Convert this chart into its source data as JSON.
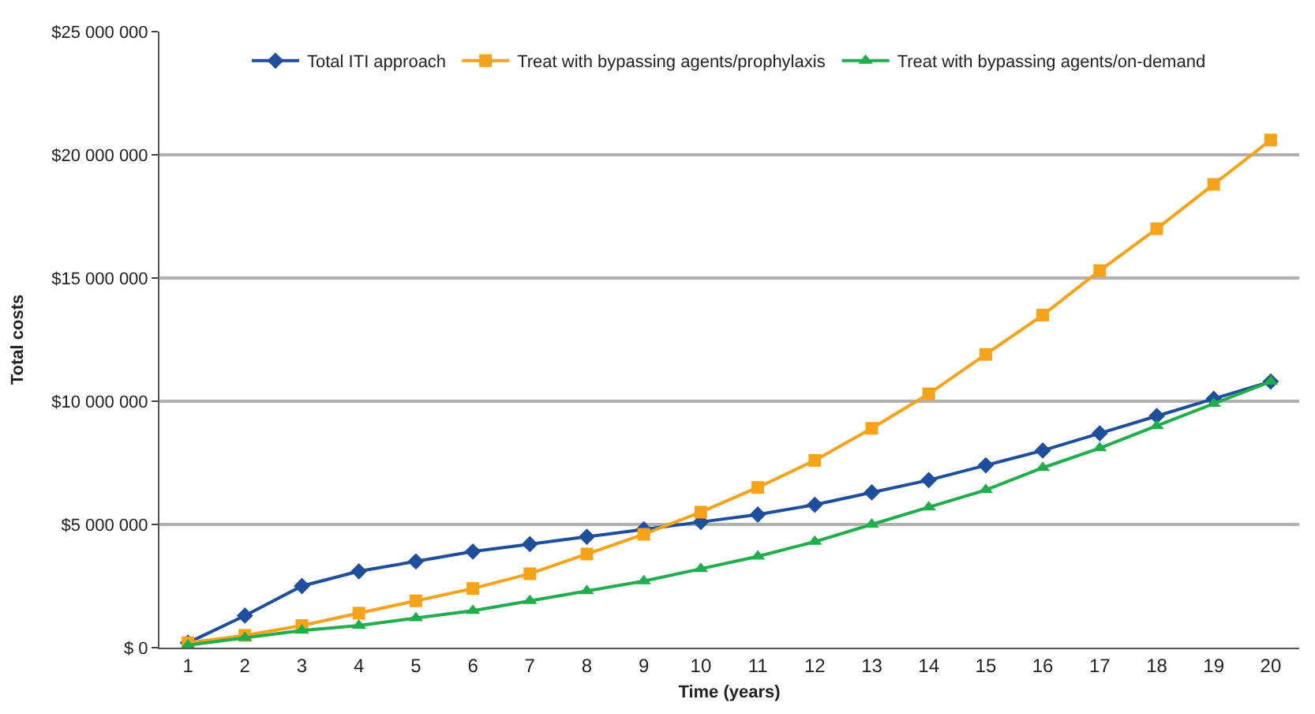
{
  "chart_data": {
    "type": "line",
    "xlabel": "Time (years)",
    "ylabel": "Total costs",
    "x": [
      1,
      2,
      3,
      4,
      5,
      6,
      7,
      8,
      9,
      10,
      11,
      12,
      13,
      14,
      15,
      16,
      17,
      18,
      19,
      20
    ],
    "xlim": [
      0.5,
      20.5
    ],
    "xticks": [
      1,
      2,
      3,
      4,
      5,
      6,
      7,
      8,
      9,
      10,
      11,
      12,
      13,
      14,
      15,
      16,
      17,
      18,
      19,
      20
    ],
    "series": [
      {
        "name": "Total ITI approach",
        "color": "#1f4e9c",
        "marker": "diamond",
        "values": [
          200000,
          1300000,
          2500000,
          3100000,
          3500000,
          3900000,
          4200000,
          4500000,
          4800000,
          5100000,
          5400000,
          5800000,
          6300000,
          6800000,
          7400000,
          8000000,
          8700000,
          9400000,
          10100000,
          10800000
        ]
      },
      {
        "name": "Treat with bypassing agents/prophylaxis",
        "color": "#f7a21b",
        "marker": "square",
        "values": [
          200000,
          500000,
          900000,
          1400000,
          1900000,
          2400000,
          3000000,
          3800000,
          4600000,
          5500000,
          6500000,
          7600000,
          8900000,
          10300000,
          11900000,
          13500000,
          15300000,
          17000000,
          18800000,
          20600000
        ]
      },
      {
        "name": "Treat with bypassing agents/on-demand",
        "color": "#1fae4b",
        "marker": "triangle",
        "values": [
          100000,
          400000,
          700000,
          900000,
          1200000,
          1500000,
          1900000,
          2300000,
          2700000,
          3200000,
          3700000,
          4300000,
          5000000,
          5700000,
          6400000,
          7300000,
          8100000,
          9000000,
          9900000,
          10800000
        ]
      }
    ],
    "ylim": [
      0,
      25000000
    ],
    "yticks": [
      {
        "value": 0,
        "label": "$ 0"
      },
      {
        "value": 5000000,
        "label": "$5 000 000"
      },
      {
        "value": 10000000,
        "label": "$10 000 000"
      },
      {
        "value": 15000000,
        "label": "$15 000 000"
      },
      {
        "value": 20000000,
        "label": "$20 000 000"
      },
      {
        "value": 25000000,
        "label": "$25 000 000"
      }
    ],
    "grid": "y",
    "legend": "top",
    "line_style": "solid"
  }
}
